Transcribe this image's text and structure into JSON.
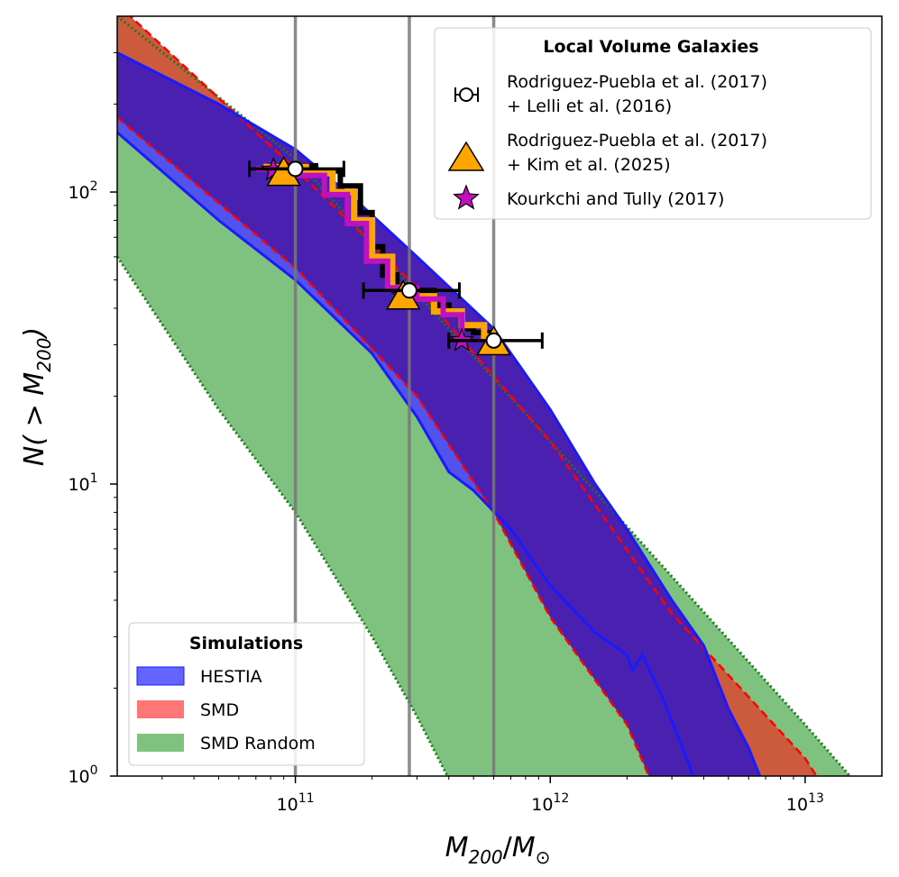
{
  "chart_data": {
    "type": "area",
    "xscale": "log",
    "yscale": "log",
    "xlim": [
      20000000000.0,
      20000000000000.0
    ],
    "ylim": [
      1,
      400
    ],
    "xlabel": "M_200 / M_⊙",
    "xlabel_parts": {
      "main": "M",
      "main_sub": "200",
      "slash": "/",
      "denom": "M",
      "denom_sub": "⊙"
    },
    "ylabel": "N( > M_200)",
    "ylabel_parts": {
      "prefix": "N( > M",
      "sub": "200",
      "suffix": ")"
    },
    "x_ticks": [
      {
        "value": 100000000000.0,
        "base": "10",
        "exp": "11"
      },
      {
        "value": 1000000000000.0,
        "base": "10",
        "exp": "12"
      },
      {
        "value": 10000000000000.0,
        "base": "10",
        "exp": "13"
      }
    ],
    "y_ticks": [
      {
        "value": 1,
        "base": "10",
        "exp": "0"
      },
      {
        "value": 10,
        "base": "10",
        "exp": "1"
      },
      {
        "value": 100,
        "base": "10",
        "exp": "2"
      }
    ],
    "vertical_lines": [
      100000000000.0,
      280000000000.0,
      600000000000.0
    ],
    "colors": {
      "hestia": "#5252ee",
      "hestia_edge": "#1a1aff",
      "smd": "#cc5a3c",
      "smd_edge": "#ff0000",
      "random": "#7fc17f",
      "random_edge": "#1a7a1a",
      "overlap": "#4a20b0",
      "black": "#000000",
      "orange": "#ffa500",
      "magenta": "#c010c0",
      "vline": "#777777"
    },
    "bands": {
      "smd_random": {
        "upper": [
          [
            20000000000.0,
            400
          ],
          [
            100000000000.0,
            130
          ],
          [
            1000000000000.0,
            14
          ],
          [
            10000000000000.0,
            1.5
          ],
          [
            20000000000000.0,
            0.75
          ]
        ],
        "lower": [
          [
            20000000000.0,
            60
          ],
          [
            50000000000.0,
            18
          ],
          [
            100000000000.0,
            8
          ],
          [
            200000000000.0,
            3
          ],
          [
            300000000000.0,
            1.6
          ],
          [
            450000000000.0,
            0.8
          ]
        ]
      },
      "smd": {
        "upper": [
          [
            20000000000.0,
            440
          ],
          [
            100000000000.0,
            120
          ],
          [
            300000000000.0,
            47
          ],
          [
            1000000000000.0,
            14
          ],
          [
            3000000000000.0,
            3.6
          ],
          [
            10000000000000.0,
            1.15
          ],
          [
            11500000000000.0,
            0.95
          ]
        ],
        "lower": [
          [
            20000000000.0,
            180
          ],
          [
            100000000000.0,
            55
          ],
          [
            300000000000.0,
            20
          ],
          [
            600000000000.0,
            8
          ],
          [
            1000000000000.0,
            3.5
          ],
          [
            2000000000000.0,
            1.5
          ],
          [
            2500000000000.0,
            0.95
          ]
        ]
      },
      "hestia": {
        "upper": [
          [
            20000000000.0,
            300
          ],
          [
            50000000000.0,
            200
          ],
          [
            100000000000.0,
            140
          ],
          [
            170000000000.0,
            95
          ],
          [
            300000000000.0,
            60
          ],
          [
            600000000000.0,
            34
          ],
          [
            1000000000000.0,
            18
          ],
          [
            1500000000000.0,
            10
          ],
          [
            2000000000000.0,
            7
          ],
          [
            3000000000000.0,
            4
          ],
          [
            4000000000000.0,
            2.8
          ],
          [
            5000000000000.0,
            1.7
          ],
          [
            6000000000000.0,
            1.25
          ],
          [
            6800000000000.0,
            0.95
          ]
        ],
        "lower": [
          [
            20000000000.0,
            160
          ],
          [
            50000000000.0,
            80
          ],
          [
            100000000000.0,
            50
          ],
          [
            200000000000.0,
            28
          ],
          [
            300000000000.0,
            17
          ],
          [
            400000000000.0,
            11
          ],
          [
            500000000000.0,
            9.5
          ],
          [
            700000000000.0,
            7
          ],
          [
            1000000000000.0,
            4.5
          ],
          [
            1500000000000.0,
            3.1
          ],
          [
            2000000000000.0,
            2.6
          ],
          [
            2100000000000.0,
            2.3
          ],
          [
            2300000000000.0,
            2.6
          ],
          [
            2800000000000.0,
            1.8
          ],
          [
            3500000000000.0,
            1.1
          ],
          [
            3700000000000.0,
            0.95
          ]
        ]
      }
    },
    "cumulative_curves": {
      "rodriguez_lelli": [
        [
          78000000000.0,
          123
        ],
        [
          120000000000.0,
          118
        ],
        [
          150000000000.0,
          105
        ],
        [
          180000000000.0,
          85
        ],
        [
          200000000000.0,
          65
        ],
        [
          220000000000.0,
          52
        ],
        [
          250000000000.0,
          47
        ],
        [
          300000000000.0,
          46
        ],
        [
          350000000000.0,
          41
        ],
        [
          400000000000.0,
          38
        ],
        [
          450000000000.0,
          34
        ],
        [
          500000000000.0,
          33
        ],
        [
          600000000000.0,
          32
        ]
      ],
      "rodriguez_kim": [
        [
          75000000000.0,
          122
        ],
        [
          110000000000.0,
          116
        ],
        [
          140000000000.0,
          100
        ],
        [
          170000000000.0,
          80
        ],
        [
          200000000000.0,
          60
        ],
        [
          240000000000.0,
          47
        ],
        [
          280000000000.0,
          44
        ],
        [
          350000000000.0,
          39
        ],
        [
          450000000000.0,
          35
        ],
        [
          550000000000.0,
          32
        ],
        [
          600000000000.0,
          31
        ]
      ],
      "kourkchi_tully": [
        [
          70000000000.0,
          120
        ],
        [
          100000000000.0,
          114
        ],
        [
          130000000000.0,
          98
        ],
        [
          160000000000.0,
          78
        ],
        [
          190000000000.0,
          58
        ],
        [
          230000000000.0,
          47
        ],
        [
          300000000000.0,
          43
        ],
        [
          380000000000.0,
          38
        ],
        [
          450000000000.0,
          31
        ]
      ]
    },
    "points": {
      "rodriguez_lelli": [
        {
          "x": 100000000000.0,
          "y": 120,
          "xerr": [
            66000000000.0,
            155000000000.0
          ]
        },
        {
          "x": 280000000000.0,
          "y": 46,
          "xerr": [
            185000000000.0,
            440000000000.0
          ]
        },
        {
          "x": 600000000000.0,
          "y": 31,
          "xerr": [
            400000000000.0,
            930000000000.0
          ]
        }
      ],
      "rodriguez_kim": [
        {
          "x": 90000000000.0,
          "y": 114
        },
        {
          "x": 265000000000.0,
          "y": 43
        },
        {
          "x": 600000000000.0,
          "y": 30
        }
      ],
      "kourkchi_tully": [
        {
          "x": 82000000000.0,
          "y": 119
        },
        {
          "x": 265000000000.0,
          "y": 44
        },
        {
          "x": 450000000000.0,
          "y": 31
        }
      ]
    },
    "legend_observations": {
      "title": "Local Volume Galaxies",
      "entries": [
        {
          "name": "rodriguez_lelli",
          "line1": "Rodriguez-Puebla et al. (2017)",
          "line2": "+ Lelli et al. (2016)",
          "marker": "open-circle-errorbar"
        },
        {
          "name": "rodriguez_kim",
          "line1": "Rodriguez-Puebla et al. (2017)",
          "line2": "+ Kim et al. (2025)",
          "marker": "orange-triangle"
        },
        {
          "name": "kourkchi_tully",
          "line1": "Kourkchi and Tully (2017)",
          "marker": "magenta-star"
        }
      ]
    },
    "legend_simulations": {
      "title": "Simulations",
      "entries": [
        {
          "name": "hestia",
          "label": "HESTIA",
          "color": "#6464ff"
        },
        {
          "name": "smd",
          "label": "SMD",
          "color": "#ff7676"
        },
        {
          "name": "smd_random",
          "label": "SMD Random",
          "color": "#7fc17f"
        }
      ]
    },
    "grid": false
  }
}
